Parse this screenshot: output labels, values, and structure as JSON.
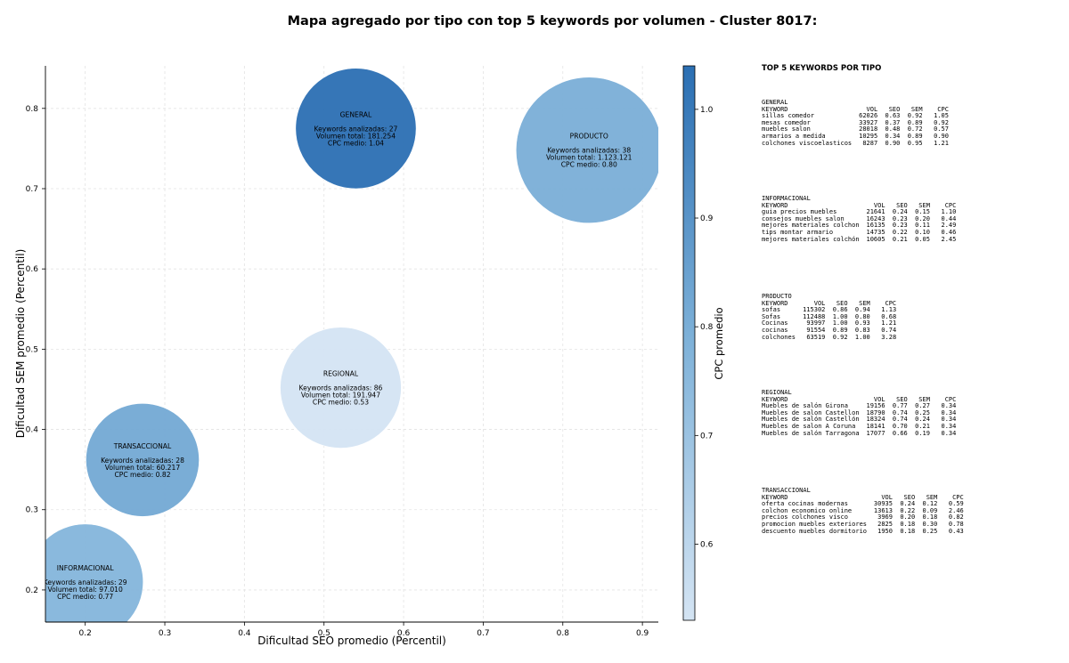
{
  "title": "Mapa agregado por tipo con top 5 keywords por volumen - Cluster 8017:",
  "chart_data": {
    "type": "scatter",
    "xlabel": "Dificultad SEO promedio (Percentil)",
    "ylabel": "Dificultad SEM promedio (Percentil)",
    "xlim": [
      0.15,
      0.92
    ],
    "ylim": [
      0.16,
      0.853
    ],
    "x_ticks": [
      0.2,
      0.3,
      0.4,
      0.5,
      0.6,
      0.7,
      0.8,
      0.9
    ],
    "y_ticks": [
      0.2,
      0.3,
      0.4,
      0.5,
      0.6,
      0.7,
      0.8
    ],
    "grid": true,
    "colorbar": {
      "label": "CPC promedio",
      "range": [
        0.53,
        1.04
      ],
      "ticks": [
        0.6,
        0.7,
        0.8,
        0.9,
        1.0
      ],
      "color_low": "#d4e4f3",
      "color_high": "#2b6fb3"
    },
    "bubble_line_labels": {
      "keywords": "Keywords analizadas:",
      "volume": "Volumen total:",
      "cpc": "CPC medio:"
    },
    "points": [
      {
        "name": "GENERAL",
        "x": 0.54,
        "y": 0.775,
        "keywords": 27,
        "volume": "181.254",
        "cpc": 1.04,
        "cpc_label": "1.04",
        "volume_value": 181254
      },
      {
        "name": "PRODUCTO",
        "x": 0.833,
        "y": 0.748,
        "keywords": 38,
        "volume": "1.123.121",
        "cpc": 0.8,
        "cpc_label": "0.80",
        "volume_value": 1123121
      },
      {
        "name": "REGIONAL",
        "x": 0.521,
        "y": 0.452,
        "keywords": 86,
        "volume": "191.947",
        "cpc": 0.53,
        "cpc_label": "0.53",
        "volume_value": 191947
      },
      {
        "name": "TRANSACCIONAL",
        "x": 0.272,
        "y": 0.362,
        "keywords": 28,
        "volume": "60.217",
        "cpc": 0.82,
        "cpc_label": "0.82",
        "volume_value": 60217
      },
      {
        "name": "INFORMACIONAL",
        "x": 0.2,
        "y": 0.21,
        "keywords": 29,
        "volume": "97.010",
        "cpc": 0.77,
        "cpc_label": "0.77",
        "volume_value": 97010
      }
    ]
  },
  "panel": {
    "title": "TOP 5 KEYWORDS POR TIPO",
    "header": {
      "keyword": "KEYWORD",
      "vol": "VOL",
      "seo": "SEO",
      "sem": "SEM",
      "cpc": "CPC"
    },
    "groups": [
      {
        "name": "GENERAL",
        "rows": [
          {
            "keyword": "sillas comedor",
            "vol": "62026",
            "seo": "0.63",
            "sem": "0.92",
            "cpc": "1.05"
          },
          {
            "keyword": "mesas comedor",
            "vol": "33927",
            "seo": "0.37",
            "sem": "0.89",
            "cpc": "0.92"
          },
          {
            "keyword": "muebles salon",
            "vol": "28018",
            "seo": "0.48",
            "sem": "0.72",
            "cpc": "0.57"
          },
          {
            "keyword": "armarios a medida",
            "vol": "10295",
            "seo": "0.34",
            "sem": "0.89",
            "cpc": "0.90"
          },
          {
            "keyword": "colchones viscoelasticos",
            "vol": "8287",
            "seo": "0.90",
            "sem": "0.95",
            "cpc": "1.21"
          }
        ]
      },
      {
        "name": "INFORMACIONAL",
        "rows": [
          {
            "keyword": "guia precios muebles",
            "vol": "21641",
            "seo": "0.24",
            "sem": "0.15",
            "cpc": "1.10"
          },
          {
            "keyword": "consejos muebles salon",
            "vol": "16243",
            "seo": "0.23",
            "sem": "0.20",
            "cpc": "0.44"
          },
          {
            "keyword": "mejores materiales colchon",
            "vol": "16135",
            "seo": "0.23",
            "sem": "0.11",
            "cpc": "2.49"
          },
          {
            "keyword": "tips montar armario",
            "vol": "14735",
            "seo": "0.22",
            "sem": "0.10",
            "cpc": "0.46"
          },
          {
            "keyword": "mejores materiales colchón",
            "vol": "10605",
            "seo": "0.21",
            "sem": "0.05",
            "cpc": "2.45"
          }
        ]
      },
      {
        "name": "PRODUCTO",
        "rows": [
          {
            "keyword": "sofas",
            "vol": "115302",
            "seo": "0.86",
            "sem": "0.94",
            "cpc": "1.13"
          },
          {
            "keyword": "Sofas",
            "vol": "112488",
            "seo": "1.00",
            "sem": "0.80",
            "cpc": "0.68"
          },
          {
            "keyword": "Cocinas",
            "vol": "93997",
            "seo": "1.00",
            "sem": "0.93",
            "cpc": "1.21"
          },
          {
            "keyword": "cocinas",
            "vol": "91554",
            "seo": "0.89",
            "sem": "0.83",
            "cpc": "0.74"
          },
          {
            "keyword": "colchones",
            "vol": "63519",
            "seo": "0.92",
            "sem": "1.00",
            "cpc": "3.28"
          }
        ]
      },
      {
        "name": "REGIONAL",
        "rows": [
          {
            "keyword": "Muebles de salón Girona",
            "vol": "19156",
            "seo": "0.77",
            "sem": "0.27",
            "cpc": "0.34"
          },
          {
            "keyword": "Muebles de salon Castellon",
            "vol": "18790",
            "seo": "0.74",
            "sem": "0.25",
            "cpc": "0.34"
          },
          {
            "keyword": "Muebles de salón Castellón",
            "vol": "18324",
            "seo": "0.74",
            "sem": "0.24",
            "cpc": "0.34"
          },
          {
            "keyword": "Muebles de salon A Coruna",
            "vol": "18141",
            "seo": "0.70",
            "sem": "0.21",
            "cpc": "0.34"
          },
          {
            "keyword": "Muebles de salón Tarragona",
            "vol": "17077",
            "seo": "0.66",
            "sem": "0.19",
            "cpc": "0.34"
          }
        ]
      },
      {
        "name": "TRANSACCIONAL",
        "rows": [
          {
            "keyword": "oferta cocinas modernas",
            "vol": "30935",
            "seo": "0.24",
            "sem": "0.12",
            "cpc": "0.59"
          },
          {
            "keyword": "colchon economico online",
            "vol": "13613",
            "seo": "0.22",
            "sem": "0.09",
            "cpc": "2.46"
          },
          {
            "keyword": "precios colchones visco",
            "vol": "3969",
            "seo": "0.20",
            "sem": "0.18",
            "cpc": "0.82"
          },
          {
            "keyword": "promocion muebles exteriores",
            "vol": "2825",
            "seo": "0.18",
            "sem": "0.30",
            "cpc": "0.78"
          },
          {
            "keyword": "descuento muebles dormitorio",
            "vol": "1950",
            "seo": "0.18",
            "sem": "0.25",
            "cpc": "0.43"
          }
        ]
      }
    ]
  }
}
